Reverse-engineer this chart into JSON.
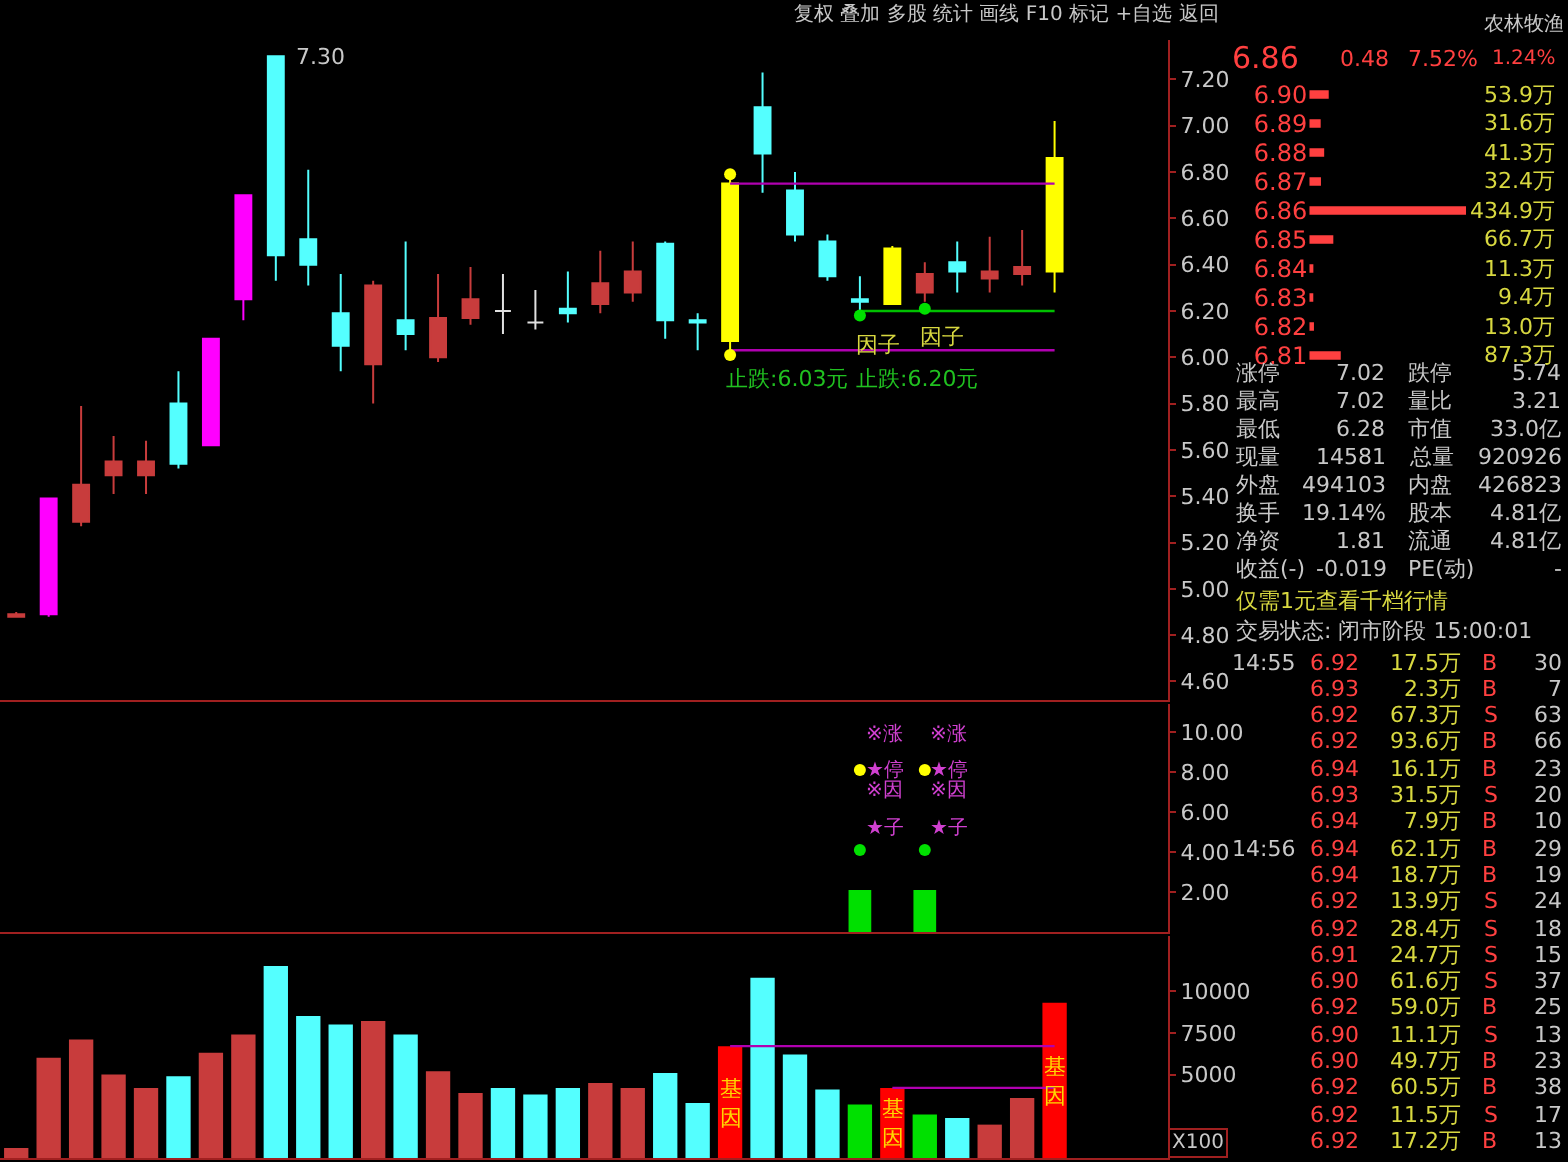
{
  "chart_data": [
    {
      "type": "candlestick",
      "categories": [
        null,
        null,
        null,
        null,
        null,
        null,
        null,
        null,
        null,
        null,
        null,
        null,
        null,
        null,
        null,
        null,
        null,
        null,
        null,
        null,
        null,
        null,
        null,
        null,
        null,
        null,
        null,
        null,
        null,
        null,
        null,
        null,
        null,
        null,
        null,
        null
      ],
      "ohlc": [
        [
          4.88,
          4.9,
          4.88,
          4.89
        ],
        [
          4.89,
          5.39,
          4.88,
          5.39
        ],
        [
          5.29,
          5.79,
          5.27,
          5.45
        ],
        [
          5.49,
          5.66,
          5.41,
          5.55
        ],
        [
          5.49,
          5.64,
          5.41,
          5.55
        ],
        [
          5.8,
          5.94,
          5.52,
          5.54
        ],
        [
          5.62,
          6.08,
          5.62,
          6.08
        ],
        [
          6.25,
          6.7,
          6.16,
          6.7
        ],
        [
          7.3,
          7.3,
          6.33,
          6.44
        ],
        [
          6.51,
          6.81,
          6.31,
          6.4
        ],
        [
          6.19,
          6.36,
          5.94,
          6.05
        ],
        [
          5.97,
          6.33,
          5.8,
          6.31
        ],
        [
          6.16,
          6.5,
          6.03,
          6.1
        ],
        [
          6.0,
          6.36,
          5.98,
          6.17
        ],
        [
          6.17,
          6.39,
          6.14,
          6.25
        ],
        [
          6.2,
          6.36,
          6.1,
          6.2
        ],
        [
          6.15,
          6.29,
          6.12,
          6.15
        ],
        [
          6.21,
          6.37,
          6.15,
          6.19
        ],
        [
          6.23,
          6.46,
          6.19,
          6.32
        ],
        [
          6.28,
          6.5,
          6.24,
          6.37
        ],
        [
          6.49,
          6.5,
          6.08,
          6.16
        ],
        [
          6.16,
          6.19,
          6.03,
          6.15
        ],
        [
          6.07,
          6.77,
          6.03,
          6.75
        ],
        [
          7.08,
          7.23,
          6.71,
          6.88
        ],
        [
          6.72,
          6.8,
          6.5,
          6.53
        ],
        [
          6.5,
          6.53,
          6.33,
          6.35
        ],
        [
          6.25,
          6.35,
          6.2,
          6.24
        ],
        [
          6.23,
          6.48,
          6.23,
          6.47
        ],
        [
          6.28,
          6.41,
          6.24,
          6.36
        ],
        [
          6.41,
          6.5,
          6.28,
          6.37
        ],
        [
          6.34,
          6.52,
          6.28,
          6.37
        ],
        [
          6.36,
          6.55,
          6.31,
          6.39
        ],
        [
          6.37,
          7.02,
          6.28,
          6.86
        ],
        null,
        null,
        null
      ],
      "colors": [
        "#c83c3c",
        "#ff00ff",
        "#c83c3c",
        "#c83c3c",
        "#c83c3c",
        "#54ffff",
        "#ff00ff",
        "#ff00ff",
        "#54ffff",
        "#54ffff",
        "#54ffff",
        "#c83c3c",
        "#54ffff",
        "#c83c3c",
        "#c83c3c",
        "#e0e0e0",
        "#e0e0e0",
        "#54ffff",
        "#c83c3c",
        "#c83c3c",
        "#54ffff",
        "#54ffff",
        "#ffff00",
        "#54ffff",
        "#54ffff",
        "#54ffff",
        "#54ffff",
        "#ffff00",
        "#c83c3c",
        "#54ffff",
        "#c83c3c",
        "#c83c3c",
        "#ffff00",
        null,
        null,
        null
      ],
      "series": [
        {
          "type": "line",
          "color": "#b000b0",
          "values": [
            null,
            null,
            null,
            null,
            null,
            null,
            null,
            null,
            null,
            null,
            null,
            null,
            null,
            null,
            null,
            null,
            null,
            null,
            null,
            null,
            null,
            null,
            6.75,
            6.75,
            6.75,
            6.75,
            6.75,
            6.75,
            6.75,
            6.75,
            6.75,
            6.75,
            6.75,
            null,
            null,
            null
          ]
        },
        {
          "type": "line",
          "color": "#b000b0",
          "values": [
            null,
            null,
            null,
            null,
            null,
            null,
            null,
            null,
            null,
            null,
            null,
            null,
            null,
            null,
            null,
            null,
            null,
            null,
            null,
            null,
            null,
            null,
            6.03,
            6.03,
            6.03,
            6.03,
            6.03,
            6.03,
            6.03,
            6.03,
            6.03,
            6.03,
            6.03,
            null,
            null,
            null
          ]
        },
        {
          "type": "line",
          "color": "#00c000",
          "values": [
            null,
            null,
            null,
            null,
            null,
            null,
            null,
            null,
            null,
            null,
            null,
            null,
            null,
            null,
            null,
            null,
            null,
            null,
            null,
            null,
            null,
            null,
            null,
            null,
            null,
            null,
            6.2,
            6.2,
            6.2,
            6.2,
            6.2,
            6.2,
            6.2,
            null,
            null,
            null
          ]
        },
        {
          "type": "scatter",
          "color": "#ffff00",
          "values": [
            null,
            null,
            null,
            null,
            null,
            null,
            null,
            null,
            null,
            null,
            null,
            null,
            null,
            null,
            null,
            null,
            null,
            null,
            null,
            null,
            null,
            null,
            6.79,
            null,
            null,
            null,
            null,
            null,
            null,
            null,
            null,
            null,
            null,
            null,
            null,
            null
          ]
        },
        {
          "type": "scatter",
          "color": "#ffff00",
          "values": [
            null,
            null,
            null,
            null,
            null,
            null,
            null,
            null,
            null,
            null,
            null,
            null,
            null,
            null,
            null,
            null,
            null,
            null,
            null,
            null,
            null,
            null,
            6.01,
            null,
            null,
            null,
            null,
            null,
            null,
            null,
            null,
            null,
            null,
            null,
            null,
            null
          ]
        },
        {
          "type": "scatter",
          "color": "#00e000",
          "values": [
            null,
            null,
            null,
            null,
            null,
            null,
            null,
            null,
            null,
            null,
            null,
            null,
            null,
            null,
            null,
            null,
            null,
            null,
            null,
            null,
            null,
            null,
            null,
            null,
            null,
            null,
            6.18,
            null,
            6.21,
            null,
            null,
            null,
            null,
            null,
            null,
            null
          ]
        }
      ],
      "annotations": [
        "7.30",
        {
          "text": "因子",
          "y": 6.18
        },
        {
          "text": "因子",
          "y": 6.21
        },
        {
          "text": "止跌:6.03元",
          "y": 6.03
        },
        {
          "text": "止跌:6.20元",
          "y": 6.2
        }
      ],
      "ylim": [
        4.52,
        7.37
      ],
      "yticks": [
        {
          "value": 4.6,
          "label": "4.60"
        },
        {
          "value": 4.8,
          "label": "4.80"
        },
        {
          "value": 5.0,
          "label": "5.00"
        },
        {
          "value": 5.2,
          "label": "5.20"
        },
        {
          "value": 5.4,
          "label": "5.40"
        },
        {
          "value": 5.6,
          "label": "5.60"
        },
        {
          "value": 5.8,
          "label": "5.80"
        },
        {
          "value": 6.0,
          "label": "6.00"
        },
        {
          "value": 6.2,
          "label": "6.20"
        },
        {
          "value": 6.4,
          "label": "6.40"
        },
        {
          "value": 6.6,
          "label": "6.60"
        },
        {
          "value": 6.8,
          "label": "6.80"
        },
        {
          "value": 7.0,
          "label": "7.00"
        },
        {
          "value": 7.2,
          "label": "7.20"
        }
      ],
      "tick_labels": "y"
    },
    {
      "type": "bar",
      "categories": [
        null,
        null,
        null,
        null,
        null,
        null,
        null,
        null,
        null,
        null,
        null,
        null,
        null,
        null,
        null,
        null,
        null,
        null,
        null,
        null,
        null,
        null,
        null,
        null,
        null,
        null,
        null,
        null,
        null,
        null,
        null,
        null,
        null,
        null,
        null,
        null
      ],
      "series": [
        {
          "type": "bar",
          "color": "#00e000",
          "values": [
            null,
            null,
            null,
            null,
            null,
            null,
            null,
            null,
            null,
            null,
            null,
            null,
            null,
            null,
            null,
            null,
            null,
            null,
            null,
            null,
            null,
            null,
            null,
            null,
            null,
            null,
            2.1,
            null,
            2.1,
            null,
            null,
            null,
            null,
            null,
            null,
            null
          ]
        },
        {
          "type": "scatter",
          "color": "#ffff00",
          "values": [
            null,
            null,
            null,
            null,
            null,
            null,
            null,
            null,
            null,
            null,
            null,
            null,
            null,
            null,
            null,
            null,
            null,
            null,
            null,
            null,
            null,
            null,
            null,
            null,
            null,
            null,
            8.1,
            null,
            8.1,
            null,
            null,
            null,
            null,
            null,
            null,
            null
          ]
        },
        {
          "type": "scatter",
          "color": "#00e000",
          "values": [
            null,
            null,
            null,
            null,
            null,
            null,
            null,
            null,
            null,
            null,
            null,
            null,
            null,
            null,
            null,
            null,
            null,
            null,
            null,
            null,
            null,
            null,
            null,
            null,
            null,
            null,
            4.1,
            null,
            4.1,
            null,
            null,
            null,
            null,
            null,
            null,
            null
          ]
        }
      ],
      "annotations": [
        "※涨",
        "★停",
        "※因",
        "★子"
      ],
      "ylim": [
        0,
        11.4
      ],
      "yticks": [
        {
          "value": 2,
          "label": "2.00"
        },
        {
          "value": 4,
          "label": "4.00"
        },
        {
          "value": 6,
          "label": "6.00"
        },
        {
          "value": 8,
          "label": "8.00"
        },
        {
          "value": 10,
          "label": "10.00"
        }
      ],
      "tick_labels": "y"
    },
    {
      "type": "bar",
      "categories": [
        null,
        null,
        null,
        null,
        null,
        null,
        null,
        null,
        null,
        null,
        null,
        null,
        null,
        null,
        null,
        null,
        null,
        null,
        null,
        null,
        null,
        null,
        null,
        null,
        null,
        null,
        null,
        null,
        null,
        null,
        null,
        null,
        null,
        null,
        null,
        null
      ],
      "values": [
        600,
        6000,
        7100,
        5000,
        4200,
        4900,
        6300,
        7400,
        11500,
        8500,
        8000,
        8200,
        7400,
        5200,
        3900,
        4200,
        3800,
        4200,
        4500,
        4200,
        5100,
        3300,
        6700,
        10800,
        6200,
        4100,
        3200,
        4200,
        2600,
        2400,
        2000,
        3600,
        9300,
        null,
        null,
        null
      ],
      "colors": [
        "#c83c3c",
        "#c83c3c",
        "#c83c3c",
        "#c83c3c",
        "#c83c3c",
        "#54ffff",
        "#c83c3c",
        "#c83c3c",
        "#54ffff",
        "#54ffff",
        "#54ffff",
        "#c83c3c",
        "#54ffff",
        "#c83c3c",
        "#c83c3c",
        "#54ffff",
        "#54ffff",
        "#54ffff",
        "#c83c3c",
        "#c83c3c",
        "#54ffff",
        "#54ffff",
        "#ff0000",
        "#54ffff",
        "#54ffff",
        "#54ffff",
        "#00e000",
        "#ff0000",
        "#00e000",
        "#54ffff",
        "#c83c3c",
        "#c83c3c",
        "#ff0000",
        null,
        null,
        null
      ],
      "value_labels": [
        null,
        null,
        null,
        null,
        null,
        null,
        null,
        null,
        null,
        null,
        null,
        null,
        null,
        null,
        null,
        null,
        null,
        null,
        null,
        null,
        null,
        null,
        "基因",
        null,
        null,
        null,
        null,
        "基因",
        null,
        null,
        null,
        null,
        "基因",
        null,
        null,
        null
      ],
      "series": [
        {
          "type": "line",
          "color": "#b000b0",
          "values": [
            null,
            null,
            null,
            null,
            null,
            null,
            null,
            null,
            null,
            null,
            null,
            null,
            null,
            null,
            null,
            null,
            null,
            null,
            null,
            null,
            null,
            null,
            6700,
            6700,
            6700,
            6700,
            6700,
            6700,
            6700,
            6700,
            6700,
            6700,
            6700,
            null,
            null,
            null
          ]
        },
        {
          "type": "line",
          "color": "#b000b0",
          "values": [
            null,
            null,
            null,
            null,
            null,
            null,
            null,
            null,
            null,
            null,
            null,
            null,
            null,
            null,
            null,
            null,
            null,
            null,
            null,
            null,
            null,
            null,
            null,
            null,
            null,
            null,
            null,
            4200,
            4200,
            4200,
            4200,
            4200,
            4200,
            null,
            null,
            null
          ]
        }
      ],
      "annotations": [
        "X100"
      ],
      "ylim": [
        0,
        13300
      ],
      "yticks": [
        5000,
        7500,
        10000
      ],
      "tick_labels": "y"
    },
    {
      "type": "bar",
      "orientation": "horizontal",
      "categories": [
        "6.90",
        "6.89",
        "6.88",
        "6.87",
        "6.86",
        "6.85",
        "6.84",
        "6.83",
        "6.82",
        "6.81"
      ],
      "values": [
        53.9,
        31.6,
        41.3,
        32.4,
        434.9,
        66.7,
        11.3,
        9.4,
        13.0,
        87.3
      ],
      "value_labels": [
        "53.9万",
        "31.6万",
        "41.3万",
        "32.4万",
        "434.9万",
        "66.7万",
        "11.3万",
        "9.4万",
        "13.0万",
        "87.3万"
      ],
      "colors": [
        "#ff4040",
        "#ff4040",
        "#ff4040",
        "#ff4040",
        "#ff4040",
        "#ff4040",
        "#ff4040",
        "#ff4040",
        "#ff4040",
        "#ff4040"
      ],
      "tick_labels": "y"
    },
    {
      "type": "other",
      "annotations": [
        "复权 叠加 多股 统计 画线 F10 标记 +自选 返回",
        "6.86 0.48 7.52%",
        "农林牧渔 1.24%",
        "涨停 7.02 跌停 5.74",
        "最高 7.02 量比 3.21",
        "最低 6.28 市值 33.0亿",
        "现量 14581 总量 920926",
        "外盘 494103 内盘 426823",
        "换手 19.14% 股本 4.81亿",
        "净资 1.81 流通 4.81亿",
        "收益(-) -0.019 PE(动) -",
        "仅需1元查看千档行情",
        "交易状态: 闭市阶段 15:00:01",
        "14:55 6.92 17.5万 B 30",
        "6.93 2.3万 B 7",
        "6.92 67.3万 S 63",
        "6.92 93.6万 B 66",
        "6.94 16.1万 B 23",
        "6.93 31.5万 S 20",
        "6.94 7.9万 B 10",
        "14:56 6.94 62.1万 B 29",
        "6.94 18.7万 B 19",
        "6.92 13.9万 S 24",
        "6.92 28.4万 S 18",
        "6.91 24.7万 S 15",
        "6.90 61.6万 S 37",
        "6.92 59.0万 B 25",
        "6.90 11.1万 S 13",
        "6.90 49.7万 B 23",
        "6.92 60.5万 B 38",
        "6.92 11.5万 S 17",
        "6.92 17.2万 B 13"
      ]
    }
  ]
}
